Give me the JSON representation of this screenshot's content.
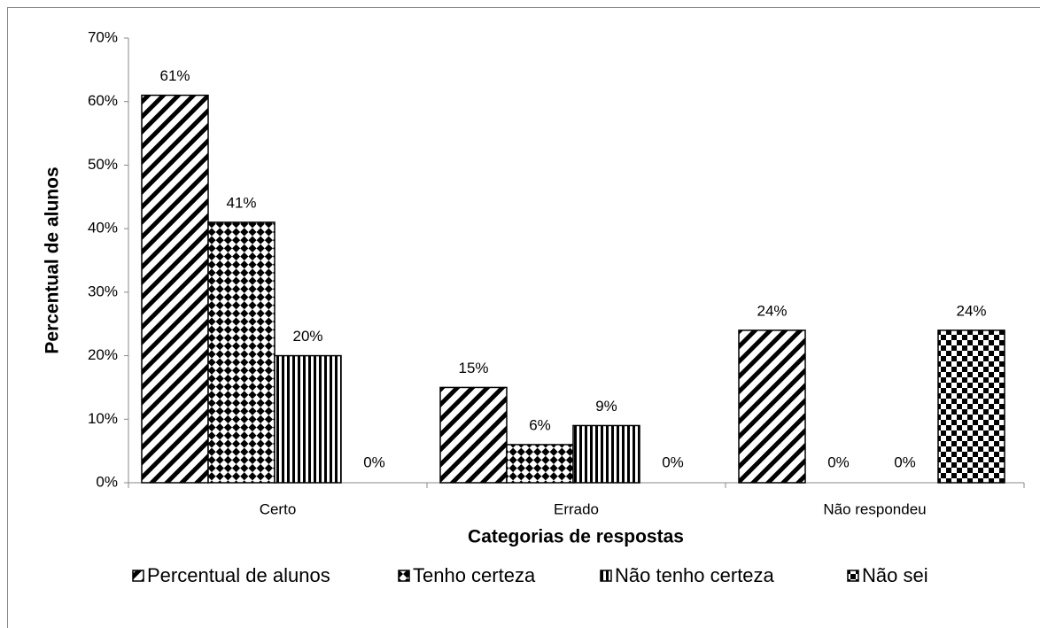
{
  "chart_data": {
    "type": "bar",
    "x_label": "Categorias de respostas",
    "y_label": "Percentual de alunos",
    "categories": [
      "Certo",
      "Errado",
      "Não respondeu"
    ],
    "series": [
      {
        "name": "Percentual de alunos",
        "color": "#000000",
        "pattern": "diagonal",
        "values": [
          61,
          15,
          24
        ],
        "value_labels": [
          "61%",
          "15%",
          "24%"
        ]
      },
      {
        "name": "Tenho certeza",
        "color": "#000000",
        "pattern": "diamond",
        "values": [
          41,
          6,
          0
        ],
        "value_labels": [
          "41%",
          "6%",
          "0%"
        ]
      },
      {
        "name": "Não tenho certeza",
        "color": "#000000",
        "pattern": "vertical",
        "values": [
          20,
          9,
          0
        ],
        "value_labels": [
          "20%",
          "9%",
          "0%"
        ]
      },
      {
        "name": "Não sei",
        "color": "#000000",
        "pattern": "checker",
        "values": [
          0,
          0,
          24
        ],
        "value_labels": [
          "0%",
          "0%",
          "24%"
        ]
      }
    ],
    "ylim": [
      0,
      70
    ],
    "yticks": [
      {
        "value": 0,
        "label": "0%"
      },
      {
        "value": 10,
        "label": "10%"
      },
      {
        "value": 20,
        "label": "20%"
      },
      {
        "value": 30,
        "label": "30%"
      },
      {
        "value": 40,
        "label": "40%"
      },
      {
        "value": 50,
        "label": "50%"
      },
      {
        "value": 60,
        "label": "60%"
      },
      {
        "value": 70,
        "label": "70%"
      }
    ],
    "legend": "bottom"
  }
}
